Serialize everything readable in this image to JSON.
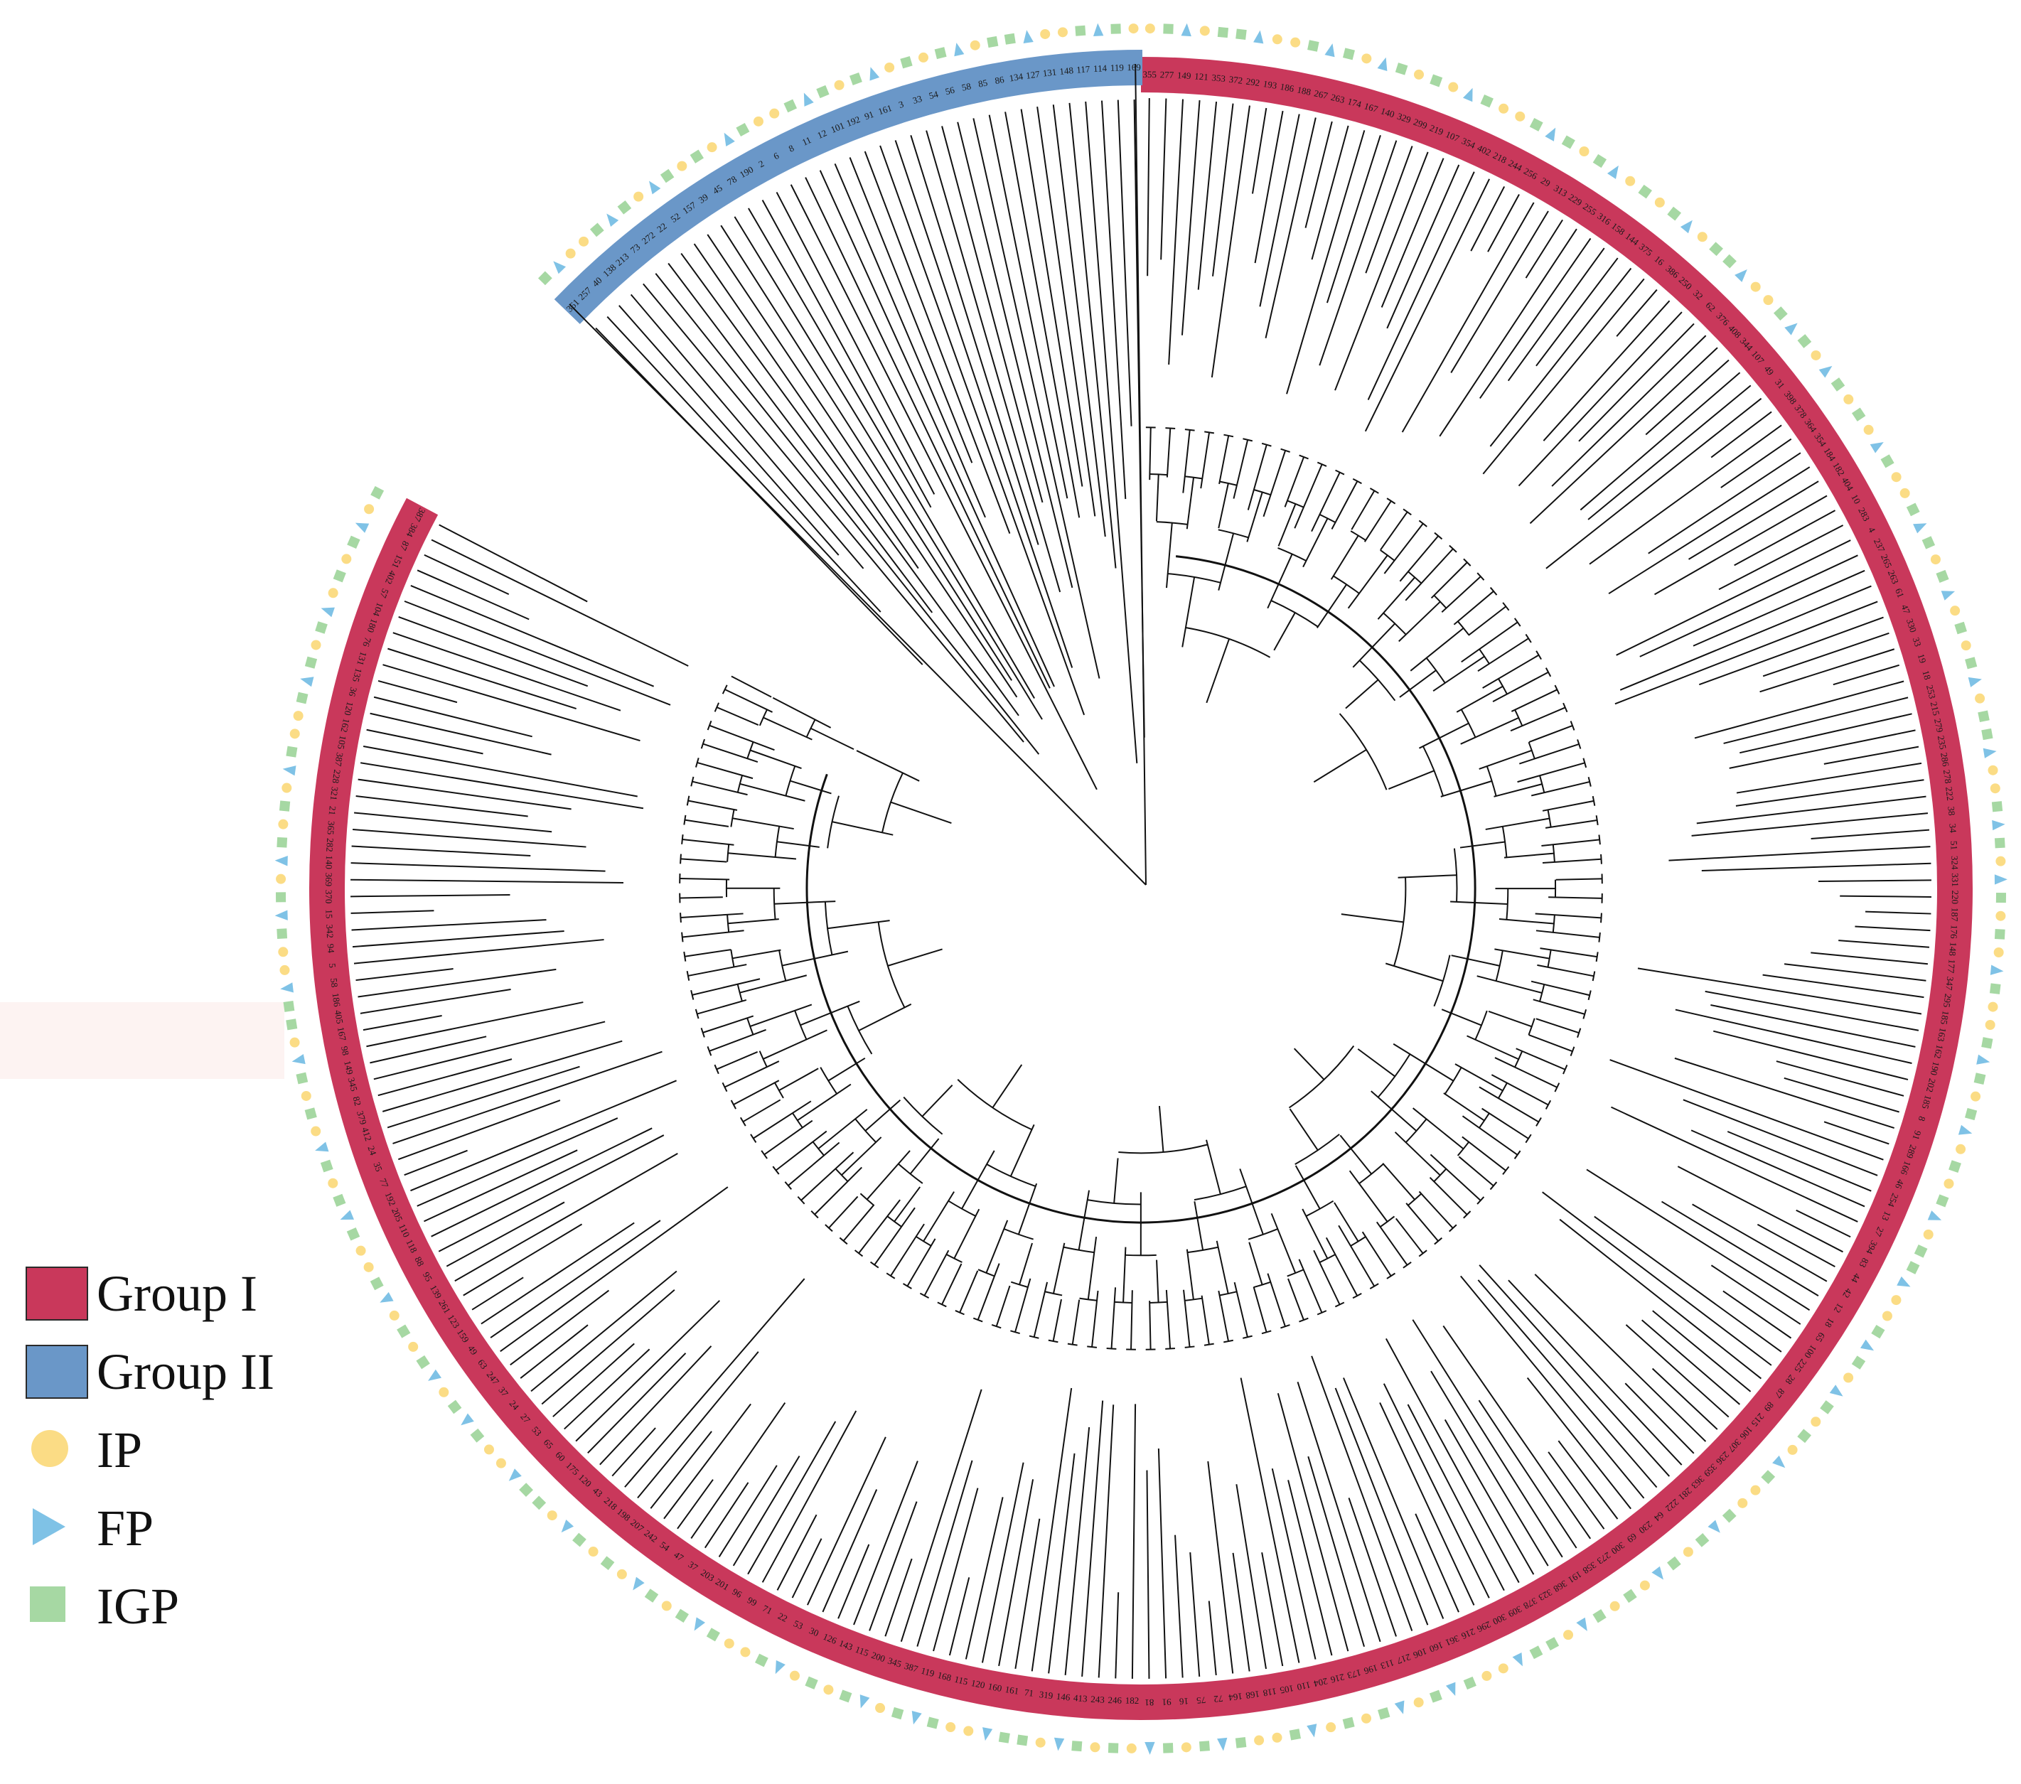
{
  "colors": {
    "group1": "#c9385b",
    "group2": "#6a97c8",
    "ip": "#fbdc85",
    "fp": "#7fc2e6",
    "igp": "#a6d8a3",
    "branch": "#111111"
  },
  "legend": {
    "items": [
      {
        "label": "Group I",
        "shape": "swatch",
        "color": "#c9385b"
      },
      {
        "label": "Group II",
        "shape": "swatch",
        "color": "#6a97c8"
      },
      {
        "label": "IP",
        "shape": "circle",
        "color": "#fbdc85"
      },
      {
        "label": "FP",
        "shape": "triangle",
        "color": "#7fc2e6"
      },
      {
        "label": "IGP",
        "shape": "square",
        "color": "#a6d8a3"
      }
    ]
  },
  "tree": {
    "group2_leaves": [
      "361",
      "257",
      "40",
      "138",
      "213",
      "73",
      "272",
      "22",
      "52",
      "157",
      "39",
      "45",
      "78",
      "190",
      "2",
      "6",
      "8",
      "11",
      "12",
      "101",
      "192",
      "91",
      "161",
      "3",
      "33",
      "54",
      "56",
      "58",
      "85",
      "86",
      "134",
      "127",
      "131",
      "148",
      "117",
      "114",
      "119",
      "169"
    ],
    "group1_leaves": [
      "355",
      "277",
      "149",
      "121",
      "353",
      "372",
      "292",
      "193",
      "186",
      "188",
      "267",
      "263",
      "174",
      "167",
      "140",
      "329",
      "299",
      "219",
      "107",
      "354",
      "402",
      "218",
      "244",
      "256",
      "29",
      "313",
      "229",
      "255",
      "316",
      "158",
      "144",
      "375",
      "16",
      "386",
      "250",
      "32",
      "62",
      "376",
      "408",
      "344",
      "107",
      "49",
      "31",
      "398",
      "378",
      "364",
      "354",
      "184",
      "182",
      "404",
      "10",
      "283",
      "4",
      "237",
      "265",
      "263",
      "61",
      "47",
      "330",
      "33",
      "19",
      "18",
      "253",
      "215",
      "279",
      "235",
      "286",
      "278",
      "222",
      "38",
      "34",
      "51",
      "324",
      "331",
      "220",
      "187",
      "176",
      "148",
      "177",
      "347",
      "295",
      "185",
      "163",
      "162",
      "190",
      "202",
      "185",
      "8",
      "91",
      "289",
      "166",
      "46",
      "254",
      "13",
      "27",
      "394",
      "83",
      "44",
      "42",
      "12",
      "18",
      "65",
      "100",
      "225",
      "28",
      "87",
      "89",
      "215",
      "106",
      "307",
      "236",
      "359",
      "363",
      "281",
      "222",
      "64",
      "230",
      "69",
      "300",
      "273",
      "358",
      "191",
      "368",
      "323",
      "378",
      "309",
      "300",
      "296",
      "216",
      "361",
      "160",
      "106",
      "217",
      "113",
      "196",
      "173",
      "216",
      "204",
      "110",
      "105",
      "118",
      "168",
      "164",
      "72",
      "75",
      "16",
      "91",
      "81",
      "182",
      "246",
      "243",
      "413",
      "146",
      "319",
      "71",
      "161",
      "160",
      "120",
      "115",
      "168",
      "119",
      "387",
      "345",
      "200",
      "115",
      "143",
      "126",
      "30",
      "53",
      "22",
      "71",
      "99",
      "96",
      "201",
      "203",
      "37",
      "47",
      "54",
      "242",
      "207",
      "198",
      "218",
      "43",
      "120",
      "175",
      "60",
      "65",
      "53",
      "27",
      "24",
      "37",
      "247",
      "63",
      "49",
      "159",
      "123",
      "261",
      "139",
      "95",
      "88",
      "118",
      "110",
      "205",
      "192",
      "77",
      "35",
      "24",
      "412",
      "379",
      "82",
      "345",
      "149",
      "98",
      "167",
      "405",
      "186",
      "58",
      "5",
      "94",
      "342",
      "15",
      "370",
      "369",
      "140",
      "282",
      "365",
      "21",
      "321",
      "228",
      "387",
      "105",
      "162",
      "120",
      "36",
      "135",
      "131",
      "76",
      "180",
      "104",
      "57",
      "402",
      "151",
      "87",
      "384",
      "387"
    ],
    "marker_pattern": [
      "IP",
      "IGP",
      "FP",
      "IP",
      "IGP",
      "IGP",
      "FP",
      "IP",
      "IP",
      "IGP",
      "FP",
      "IGP",
      "IP",
      "FP",
      "IGP",
      "IP",
      "IGP",
      "IP",
      "FP",
      "IGP",
      "IP",
      "IP",
      "IGP",
      "FP",
      "IGP",
      "IP",
      "IGP",
      "FP",
      "IP",
      "IGP"
    ]
  }
}
